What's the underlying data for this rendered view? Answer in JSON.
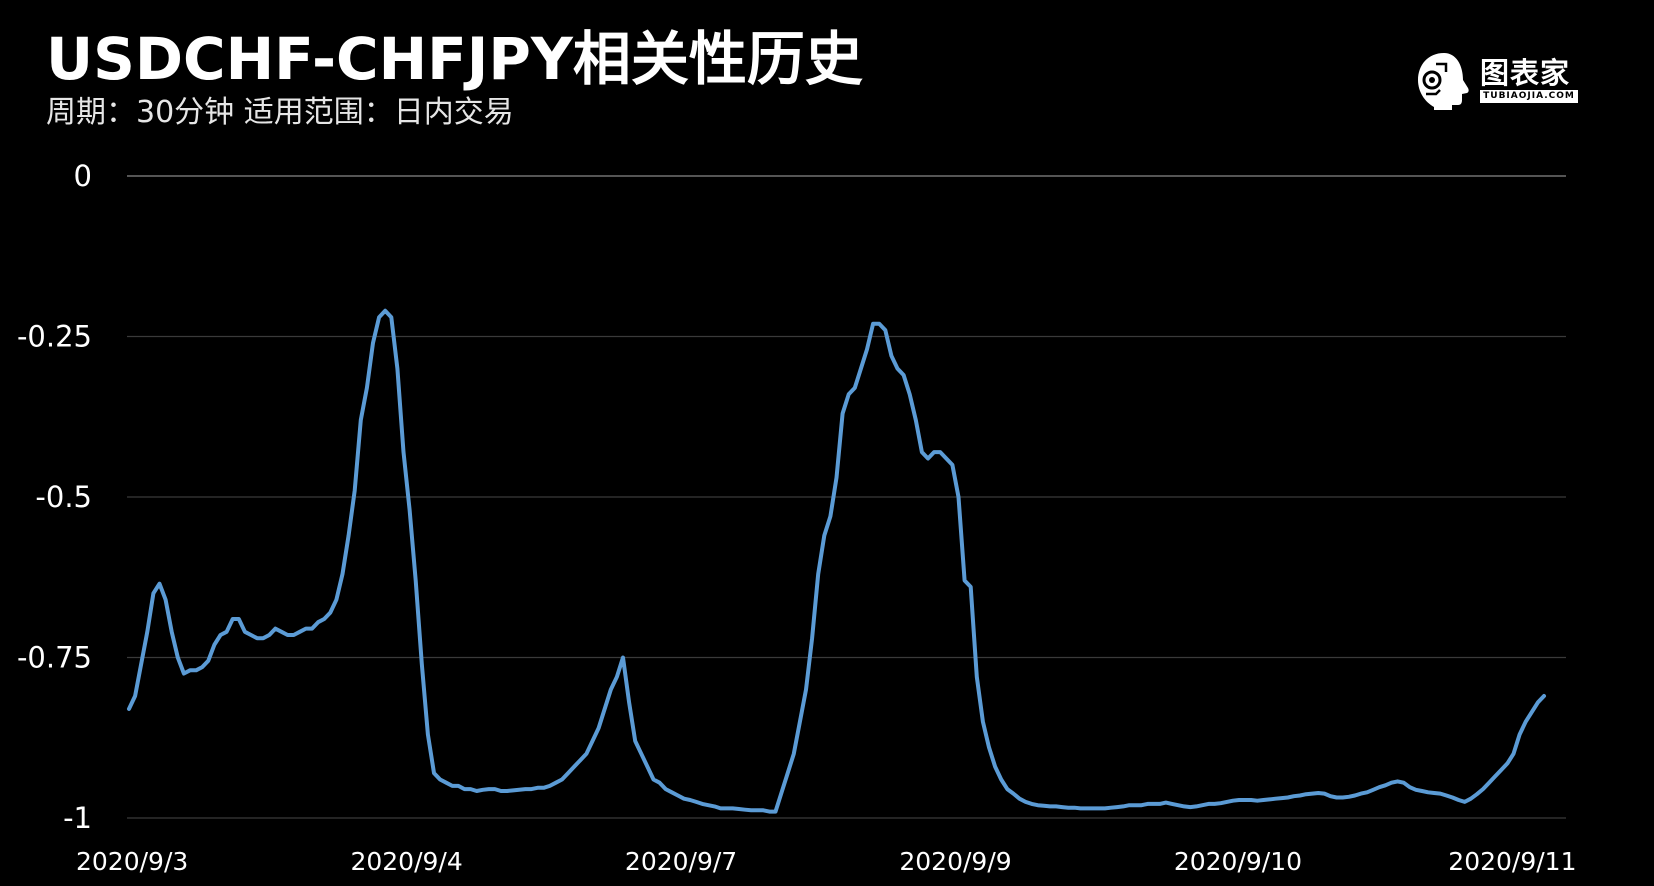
{
  "header": {
    "title": "USDCHF-CHFJPY相关性历史",
    "subtitle": "周期：30分钟  适用范围：日内交易"
  },
  "logo": {
    "name": "图表家",
    "sub": "TUBIAOJIA.COM"
  },
  "colors": {
    "background": "#000000",
    "line": "#5b9bd5",
    "grid": "#3a3a3a",
    "text": "#ffffff"
  },
  "chart_data": {
    "type": "line",
    "title": "USDCHF-CHFJPY相关性历史",
    "xlabel": "",
    "ylabel": "",
    "ylim": [
      -1,
      0
    ],
    "yticks": [
      0,
      -0.25,
      -0.5,
      -0.75,
      -1
    ],
    "ytick_labels": [
      "0",
      "-0.25",
      "-0.5",
      "-0.75",
      "-1"
    ],
    "xtick_labels": [
      "2020/9/3",
      "2020/9/4",
      "2020/9/7",
      "2020/9/9",
      "2020/9/10",
      "2020/9/11"
    ],
    "xtick_index": [
      0,
      45,
      90,
      135,
      180,
      225
    ],
    "grid": true,
    "legend": "none",
    "series": [
      {
        "values": [
          -0.83,
          -0.81,
          -0.76,
          -0.71,
          -0.65,
          -0.635,
          -0.66,
          -0.71,
          -0.75,
          -0.775,
          -0.77,
          -0.77,
          -0.765,
          -0.755,
          -0.73,
          -0.715,
          -0.71,
          -0.69,
          -0.69,
          -0.71,
          -0.715,
          -0.72,
          -0.72,
          -0.715,
          -0.705,
          -0.71,
          -0.715,
          -0.715,
          -0.71,
          -0.705,
          -0.705,
          -0.695,
          -0.69,
          -0.68,
          -0.66,
          -0.62,
          -0.56,
          -0.49,
          -0.38,
          -0.33,
          -0.26,
          -0.22,
          -0.21,
          -0.22,
          -0.3,
          -0.43,
          -0.52,
          -0.63,
          -0.76,
          -0.87,
          -0.93,
          -0.94,
          -0.945,
          -0.95,
          -0.95,
          -0.955,
          -0.955,
          -0.958,
          -0.956,
          -0.955,
          -0.955,
          -0.958,
          -0.958,
          -0.957,
          -0.956,
          -0.955,
          -0.955,
          -0.953,
          -0.953,
          -0.95,
          -0.945,
          -0.94,
          -0.93,
          -0.92,
          -0.91,
          -0.9,
          -0.88,
          -0.86,
          -0.83,
          -0.8,
          -0.78,
          -0.75,
          -0.82,
          -0.88,
          -0.9,
          -0.92,
          -0.94,
          -0.945,
          -0.955,
          -0.96,
          -0.965,
          -0.97,
          -0.972,
          -0.975,
          -0.978,
          -0.98,
          -0.982,
          -0.985,
          -0.985,
          -0.985,
          -0.986,
          -0.987,
          -0.988,
          -0.988,
          -0.988,
          -0.99,
          -0.99,
          -0.96,
          -0.93,
          -0.9,
          -0.85,
          -0.8,
          -0.72,
          -0.62,
          -0.56,
          -0.53,
          -0.47,
          -0.37,
          -0.34,
          -0.33,
          -0.3,
          -0.27,
          -0.23,
          -0.23,
          -0.24,
          -0.28,
          -0.3,
          -0.31,
          -0.34,
          -0.38,
          -0.43,
          -0.44,
          -0.43,
          -0.43,
          -0.44,
          -0.45,
          -0.5,
          -0.63,
          -0.64,
          -0.78,
          -0.85,
          -0.89,
          -0.92,
          -0.94,
          -0.955,
          -0.962,
          -0.97,
          -0.975,
          -0.978,
          -0.98,
          -0.981,
          -0.982,
          -0.982,
          -0.983,
          -0.984,
          -0.984,
          -0.985,
          -0.985,
          -0.985,
          -0.985,
          -0.985,
          -0.984,
          -0.983,
          -0.982,
          -0.98,
          -0.98,
          -0.98,
          -0.978,
          -0.978,
          -0.978,
          -0.976,
          -0.978,
          -0.98,
          -0.982,
          -0.983,
          -0.982,
          -0.98,
          -0.978,
          -0.978,
          -0.977,
          -0.975,
          -0.973,
          -0.972,
          -0.972,
          -0.972,
          -0.973,
          -0.972,
          -0.971,
          -0.97,
          -0.969,
          -0.968,
          -0.966,
          -0.965,
          -0.963,
          -0.962,
          -0.961,
          -0.962,
          -0.966,
          -0.968,
          -0.968,
          -0.967,
          -0.965,
          -0.962,
          -0.96,
          -0.956,
          -0.952,
          -0.949,
          -0.945,
          -0.943,
          -0.945,
          -0.952,
          -0.956,
          -0.958,
          -0.96,
          -0.961,
          -0.962,
          -0.965,
          -0.968,
          -0.972,
          -0.975,
          -0.97,
          -0.963,
          -0.955,
          -0.945,
          -0.935,
          -0.925,
          -0.915,
          -0.9,
          -0.87,
          -0.85,
          -0.835,
          -0.82,
          -0.81
        ]
      }
    ]
  }
}
